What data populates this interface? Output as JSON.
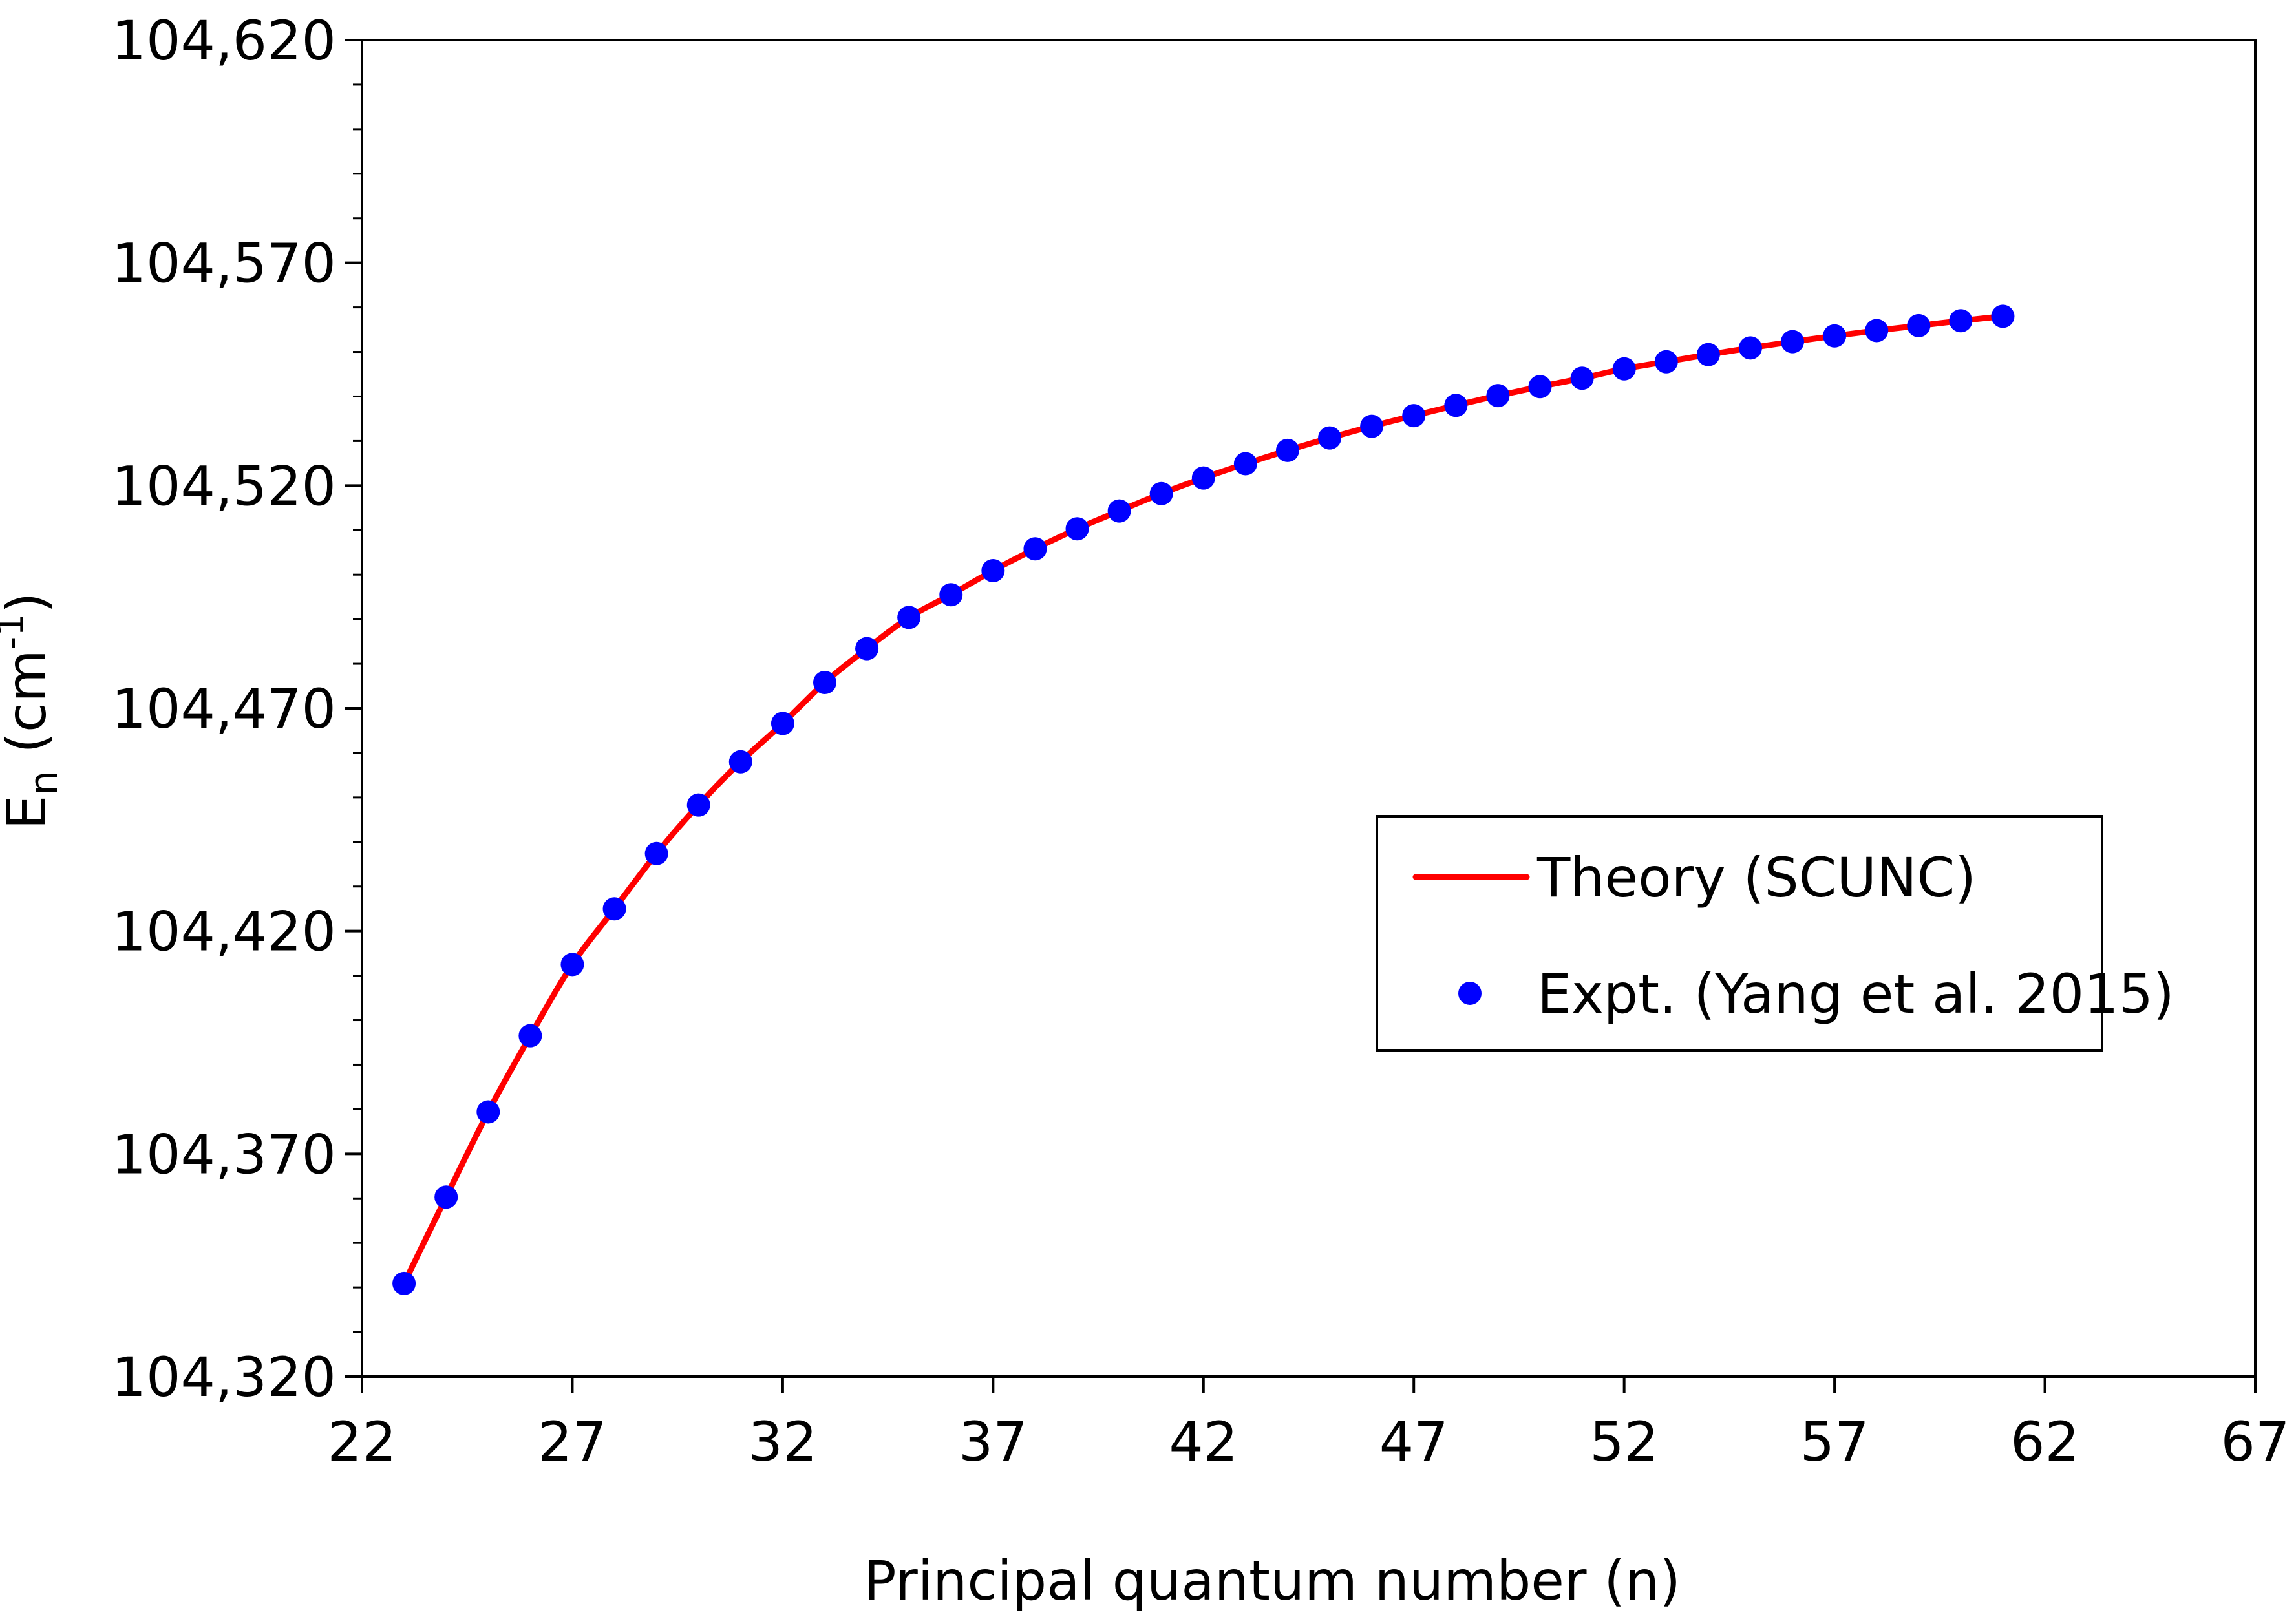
{
  "chart_data": {
    "type": "line",
    "title": "",
    "xlabel": "Principal quantum number (n)",
    "ylabel": {
      "main": "E",
      "subscript": "n",
      "unit_open": " (cm",
      "superscript": "-1",
      "unit_close": ")"
    },
    "xlim": [
      22,
      67
    ],
    "ylim": [
      104320,
      104620
    ],
    "x_ticks": [
      22,
      27,
      32,
      37,
      42,
      47,
      52,
      57,
      62,
      67
    ],
    "x_tick_labels": [
      "22",
      "27",
      "32",
      "37",
      "42",
      "47",
      "52",
      "57",
      "62",
      "67"
    ],
    "y_ticks": [
      104320,
      104370,
      104420,
      104470,
      104520,
      104570,
      104620
    ],
    "y_tick_labels": [
      "104,320",
      "104,370",
      "104,420",
      "104,470",
      "104,520",
      "104,570",
      "104,620"
    ],
    "y_minor_step": 10,
    "grid": false,
    "legend_position": "center-right",
    "series": [
      {
        "name": "Theory (SCUNC)",
        "kind": "line",
        "color": "#ff0000",
        "x": [
          23,
          24,
          25,
          26,
          27,
          28,
          29,
          30,
          31,
          32,
          33,
          34,
          35,
          36,
          37,
          38,
          39,
          40,
          41,
          42,
          43,
          44,
          45,
          46,
          47,
          48,
          49,
          50,
          51,
          52,
          53,
          54,
          55,
          56,
          57,
          58,
          59,
          60,
          61
        ],
        "values": [
          104340.9,
          104360.3,
          104379.4,
          104396.5,
          104412.5,
          104425.0,
          104437.4,
          104448.3,
          104458.0,
          104466.6,
          104475.8,
          104483.4,
          104490.4,
          104495.5,
          104500.9,
          104505.8,
          104510.3,
          104514.3,
          104518.2,
          104521.7,
          104524.9,
          104527.9,
          104530.7,
          104533.3,
          104535.7,
          104538.0,
          104540.2,
          104542.2,
          104544.1,
          104546.2,
          104547.8,
          104549.4,
          104550.9,
          104552.3,
          104553.6,
          104554.8,
          104555.9,
          104557.0,
          104558.0
        ]
      },
      {
        "name": "Expt. (Yang et al. 2015)",
        "kind": "scatter",
        "color": "#0000ff",
        "x": [
          23,
          24,
          25,
          26,
          27,
          28,
          29,
          30,
          31,
          32,
          33,
          34,
          35,
          36,
          37,
          38,
          39,
          40,
          41,
          42,
          43,
          44,
          45,
          46,
          47,
          48,
          49,
          50,
          51,
          52,
          53,
          54,
          55,
          56,
          57,
          58,
          59,
          60,
          61
        ],
        "values": [
          104340.9,
          104360.3,
          104379.4,
          104396.5,
          104412.5,
          104425.0,
          104437.4,
          104448.3,
          104458.0,
          104466.6,
          104475.8,
          104483.4,
          104490.4,
          104495.5,
          104500.9,
          104505.8,
          104510.3,
          104514.3,
          104518.2,
          104521.7,
          104524.9,
          104527.9,
          104530.7,
          104533.3,
          104535.7,
          104538.0,
          104540.2,
          104542.2,
          104544.1,
          104546.2,
          104547.8,
          104549.4,
          104550.9,
          104552.3,
          104553.6,
          104554.8,
          104555.9,
          104557.0,
          104558.0
        ]
      }
    ]
  }
}
